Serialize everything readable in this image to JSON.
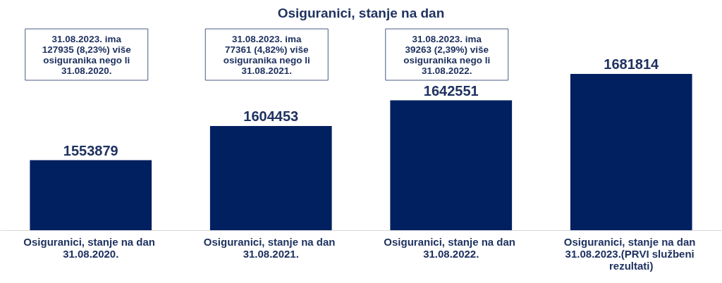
{
  "chart_data": {
    "type": "bar",
    "title": "Osiguranici, stanje na dan",
    "categories": [
      "Osiguranici, stanje na dan 31.08.2020.",
      "Osiguranici, stanje na dan 31.08.2021.",
      "Osiguranici, stanje na dan 31.08.2022.",
      "Osiguranici, stanje na dan 31.08.2023.(PRVI službeni rezultati)"
    ],
    "values": [
      1553879,
      1604453,
      1642551,
      1681814
    ],
    "color": "#002060",
    "data_labels": true,
    "ylim": [
      1450000,
      1681814
    ],
    "annotations": [
      "31.08.2023. ima 127935 (8,23%) više osiguranika nego li 31.08.2020.",
      "31.08.2023. ima 77361 (4,82%) više osiguranika nego li 31.08.2021.",
      "31.08.2023. ima 39263 (2,39%) više osiguranika nego li 31.08.2022."
    ]
  }
}
